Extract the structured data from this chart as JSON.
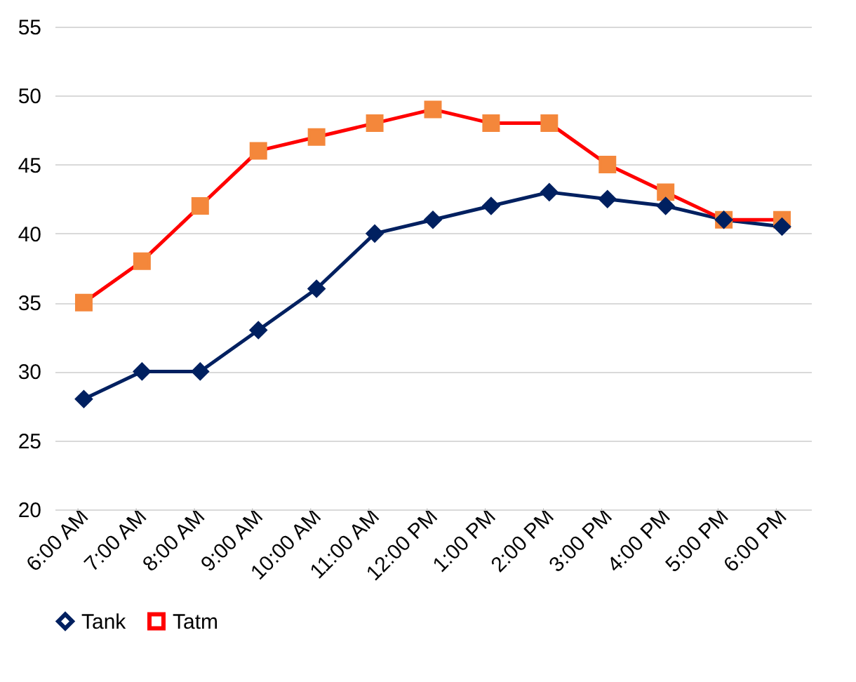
{
  "chart_data": {
    "type": "line",
    "categories": [
      "6:00 AM",
      "7:00 AM",
      "8:00 AM",
      "9:00 AM",
      "10:00 AM",
      "11:00 AM",
      "12:00 PM",
      "1:00 PM",
      "2:00 PM",
      "3:00 PM",
      "4:00 PM",
      "5:00 PM",
      "6:00 PM"
    ],
    "series": [
      {
        "name": "Tank",
        "color": "#002060",
        "marker": "diamond",
        "values": [
          28,
          30,
          30,
          33,
          36,
          40,
          41,
          42,
          43,
          42.5,
          42,
          41,
          40.5
        ]
      },
      {
        "name": "Tatm",
        "color": "#ff0000",
        "marker": "square",
        "colors": [
          "#f4873b",
          "#f4873b",
          "#f4873b",
          "#f4873b",
          "#f4873b",
          "#f4873b",
          "#f4873b",
          "#f4873b",
          "#f4873b",
          "#f4873b",
          "#f4873b",
          "#f4873b",
          "#f4873b"
        ],
        "values": [
          35,
          38,
          42,
          46,
          47,
          48,
          49,
          48,
          48,
          45,
          43,
          41,
          41
        ]
      }
    ],
    "ylim": [
      20,
      55
    ],
    "yticks": [
      20,
      25,
      30,
      35,
      40,
      45,
      50,
      55
    ],
    "grid": "y",
    "legend": "bottom",
    "line_style": "solid"
  }
}
